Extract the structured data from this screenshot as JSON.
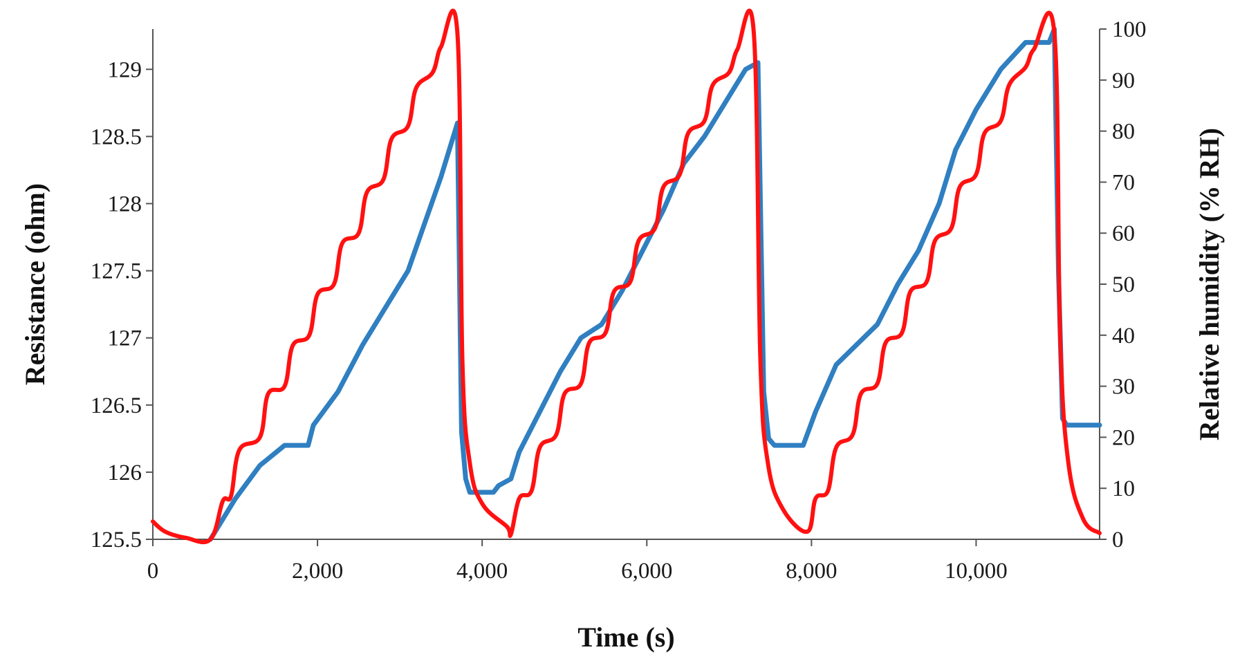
{
  "chart_data": {
    "type": "line",
    "title": "",
    "xlabel": "Time (s)",
    "ylabel_left": "Resistance (ohm)",
    "ylabel_right": "Relative humidity (% RH)",
    "xlim": [
      0,
      11500
    ],
    "ylim_left": [
      125.5,
      129.3
    ],
    "ylim_right": [
      0,
      100
    ],
    "x_ticks": [
      0,
      2000,
      4000,
      6000,
      8000,
      10000
    ],
    "x_tick_labels": [
      "0",
      "2,000",
      "4,000",
      "6,000",
      "8,000",
      "10,000"
    ],
    "y_left_ticks": [
      125.5,
      126,
      126.5,
      127,
      127.5,
      128,
      128.5,
      129
    ],
    "y_left_tick_labels": [
      "125.5",
      "126",
      "126.5",
      "127",
      "127.5",
      "128",
      "128.5",
      "129"
    ],
    "y_right_ticks": [
      0,
      10,
      20,
      30,
      40,
      50,
      60,
      70,
      80,
      90,
      100
    ],
    "y_right_tick_labels": [
      "0",
      "10",
      "20",
      "30",
      "40",
      "50",
      "60",
      "70",
      "80",
      "90",
      "100"
    ],
    "grid": false,
    "legend": "none",
    "series": [
      {
        "name": "Resistance",
        "axis": "left",
        "color": "#2f7fc1",
        "style": "step",
        "points": [
          [
            700,
            125.5
          ],
          [
            750,
            125.55
          ],
          [
            1000,
            125.8
          ],
          [
            1300,
            126.05
          ],
          [
            1600,
            126.2
          ],
          [
            1950,
            126.35
          ],
          [
            2250,
            126.6
          ],
          [
            2550,
            126.95
          ],
          [
            2850,
            127.25
          ],
          [
            3100,
            127.5
          ],
          [
            3300,
            127.85
          ],
          [
            3500,
            128.2
          ],
          [
            3700,
            128.6
          ],
          [
            3750,
            126.3
          ],
          [
            3800,
            125.95
          ],
          [
            3850,
            125.85
          ],
          [
            4200,
            125.9
          ],
          [
            4350,
            125.95
          ],
          [
            4450,
            126.15
          ],
          [
            4700,
            126.45
          ],
          [
            4950,
            126.75
          ],
          [
            5200,
            127.0
          ],
          [
            5450,
            127.1
          ],
          [
            5700,
            127.35
          ],
          [
            5950,
            127.65
          ],
          [
            6200,
            127.95
          ],
          [
            6450,
            128.3
          ],
          [
            6700,
            128.5
          ],
          [
            6950,
            128.75
          ],
          [
            7200,
            129.0
          ],
          [
            7350,
            129.05
          ],
          [
            7420,
            126.6
          ],
          [
            7480,
            126.25
          ],
          [
            7550,
            126.2
          ],
          [
            7900,
            126.2
          ],
          [
            8050,
            126.45
          ],
          [
            8300,
            126.8
          ],
          [
            8550,
            126.95
          ],
          [
            8800,
            127.1
          ],
          [
            9050,
            127.4
          ],
          [
            9300,
            127.65
          ],
          [
            9550,
            128.0
          ],
          [
            9750,
            128.4
          ],
          [
            10000,
            128.7
          ],
          [
            10300,
            129.0
          ],
          [
            10600,
            129.2
          ],
          [
            10950,
            129.3
          ],
          [
            11000,
            127.5
          ],
          [
            11050,
            126.4
          ],
          [
            11100,
            126.35
          ],
          [
            11500,
            126.35
          ]
        ]
      },
      {
        "name": "Relative humidity",
        "axis": "right",
        "color": "#ff1111",
        "style": "smooth",
        "points": [
          [
            0,
            3.5
          ],
          [
            150,
            1.5
          ],
          [
            400,
            0.3
          ],
          [
            700,
            0.0
          ],
          [
            850,
            7.5
          ],
          [
            950,
            8.5
          ],
          [
            1050,
            17.5
          ],
          [
            1300,
            20.0
          ],
          [
            1400,
            28.5
          ],
          [
            1600,
            30.0
          ],
          [
            1700,
            38.0
          ],
          [
            1900,
            40.0
          ],
          [
            2000,
            48.0
          ],
          [
            2200,
            50.0
          ],
          [
            2300,
            58.0
          ],
          [
            2500,
            60.0
          ],
          [
            2600,
            68.0
          ],
          [
            2800,
            70.5
          ],
          [
            2900,
            78.5
          ],
          [
            3100,
            81.0
          ],
          [
            3200,
            88.5
          ],
          [
            3400,
            91.5
          ],
          [
            3500,
            96.5
          ],
          [
            3700,
            99.0
          ],
          [
            3760,
            35.0
          ],
          [
            3850,
            15.0
          ],
          [
            4000,
            7.0
          ],
          [
            4300,
            2.5
          ],
          [
            4350,
            1.0
          ],
          [
            4450,
            8.0
          ],
          [
            4600,
            9.5
          ],
          [
            4700,
            18.0
          ],
          [
            4900,
            20.5
          ],
          [
            5000,
            28.5
          ],
          [
            5200,
            30.5
          ],
          [
            5300,
            38.5
          ],
          [
            5500,
            40.5
          ],
          [
            5600,
            48.5
          ],
          [
            5800,
            50.5
          ],
          [
            5900,
            58.5
          ],
          [
            6100,
            61.0
          ],
          [
            6200,
            69.0
          ],
          [
            6400,
            71.5
          ],
          [
            6500,
            79.5
          ],
          [
            6700,
            82.0
          ],
          [
            6800,
            89.0
          ],
          [
            7000,
            91.5
          ],
          [
            7100,
            96.0
          ],
          [
            7300,
            99.2
          ],
          [
            7380,
            35.0
          ],
          [
            7470,
            15.0
          ],
          [
            7650,
            6.0
          ],
          [
            7950,
            1.5
          ],
          [
            8050,
            8.0
          ],
          [
            8200,
            9.5
          ],
          [
            8300,
            18.0
          ],
          [
            8500,
            20.5
          ],
          [
            8600,
            28.5
          ],
          [
            8800,
            30.5
          ],
          [
            8900,
            38.5
          ],
          [
            9100,
            40.5
          ],
          [
            9200,
            48.5
          ],
          [
            9400,
            50.5
          ],
          [
            9500,
            58.5
          ],
          [
            9700,
            61.0
          ],
          [
            9800,
            69.0
          ],
          [
            10000,
            71.5
          ],
          [
            10100,
            79.5
          ],
          [
            10300,
            82.0
          ],
          [
            10400,
            89.0
          ],
          [
            10600,
            92.5
          ],
          [
            10700,
            96.0
          ],
          [
            10950,
            99.2
          ],
          [
            11020,
            40.0
          ],
          [
            11120,
            15.0
          ],
          [
            11300,
            4.0
          ],
          [
            11500,
            1.2
          ]
        ]
      }
    ]
  }
}
